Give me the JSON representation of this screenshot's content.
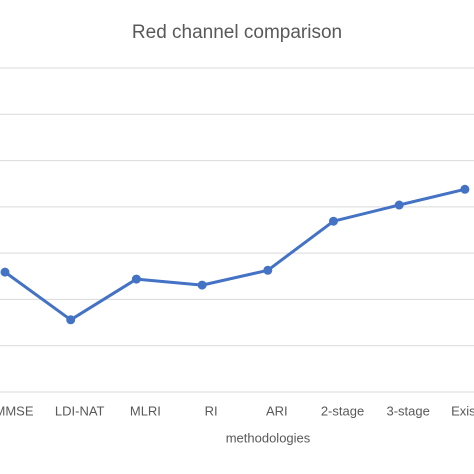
{
  "chart_data": {
    "type": "line",
    "title": "Red channel comparison",
    "x_label": "methodologies",
    "categories": [
      "MMSE",
      "LDI-NAT",
      "MLRI",
      "RI",
      "ARI",
      "2-stage",
      "3-stage",
      "Existing"
    ],
    "series": [
      {
        "name": "Red channel",
        "color": "#4472c4",
        "values": [
          2.59,
          1.56,
          2.44,
          2.31,
          2.63,
          3.69,
          4.04,
          4.38
        ]
      }
    ],
    "ylim": [
      0,
      7
    ],
    "yticks": [
      0,
      1,
      2,
      3,
      4,
      5,
      6,
      7
    ],
    "grid": true
  }
}
